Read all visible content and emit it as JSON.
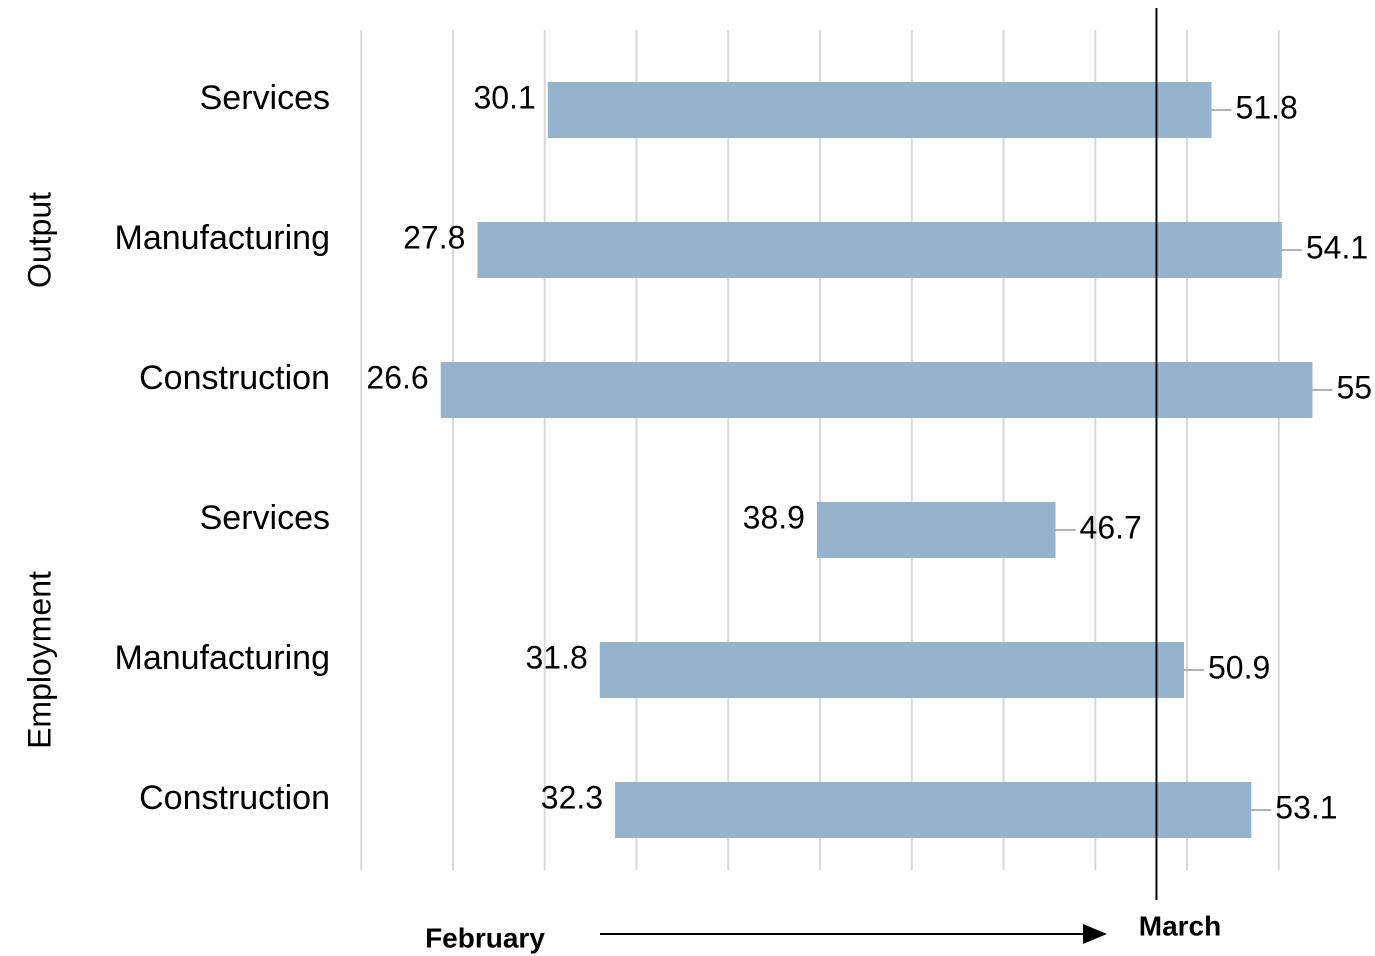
{
  "chart_data": {
    "type": "range_bar",
    "groups": [
      {
        "name": "Output",
        "categories": [
          "Services",
          "Manufacturing",
          "Construction"
        ]
      },
      {
        "name": "Employment",
        "categories": [
          "Services",
          "Manufacturing",
          "Construction"
        ]
      }
    ],
    "series": [
      {
        "name": "February",
        "values": [
          30.1,
          27.8,
          26.6,
          38.9,
          31.8,
          32.3
        ]
      },
      {
        "name": "March",
        "values": [
          51.8,
          54.1,
          55.1,
          46.7,
          50.9,
          53.1
        ]
      }
    ],
    "color": "#95b3cd",
    "xlim": [
      22,
      56
    ],
    "xticks": [
      24,
      27,
      30,
      33,
      36,
      39,
      42,
      45,
      48,
      51,
      54
    ],
    "reference_line": 50,
    "grid": true
  }
}
